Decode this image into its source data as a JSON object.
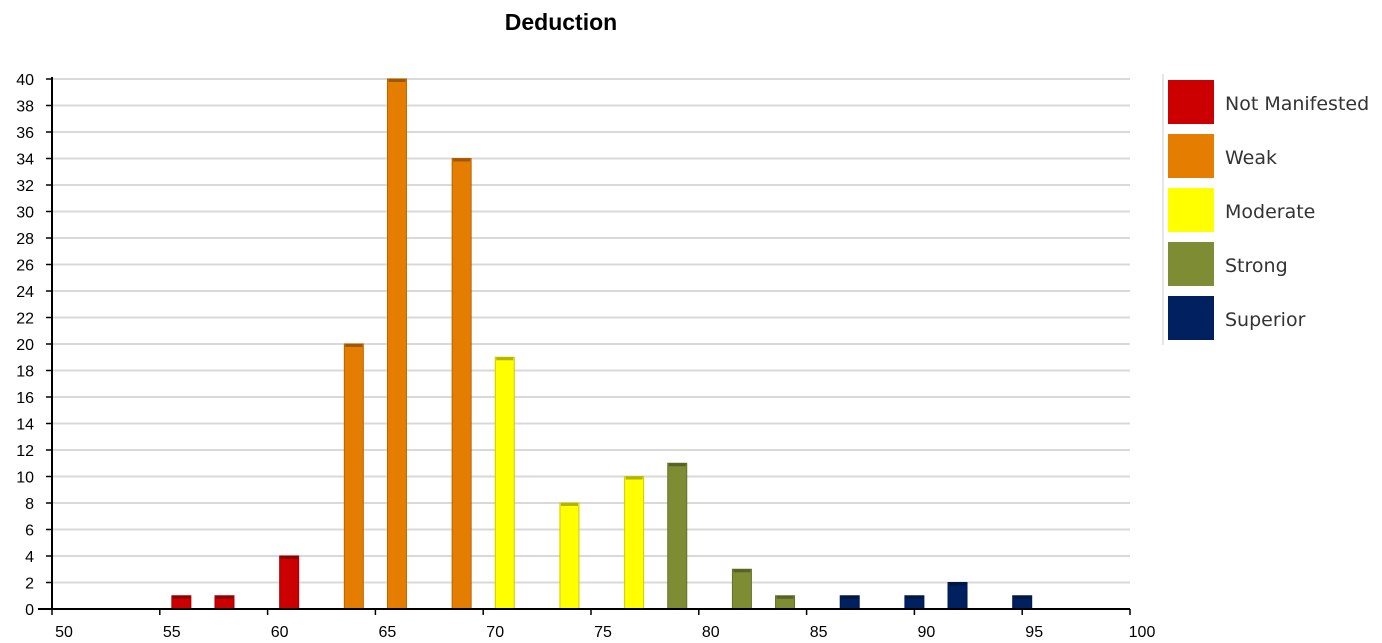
{
  "chart_data": {
    "type": "bar",
    "title": "Deduction",
    "xlabel": "",
    "ylabel": "",
    "xlim": [
      50,
      100
    ],
    "ylim": [
      0,
      40
    ],
    "x_ticks": [
      "50",
      "55",
      "60",
      "65",
      "70",
      "75",
      "80",
      "85",
      "90",
      "95",
      "100"
    ],
    "y_ticks": [
      "0",
      "2",
      "4",
      "6",
      "8",
      "10",
      "12",
      "14",
      "16",
      "18",
      "20",
      "22",
      "24",
      "26",
      "28",
      "30",
      "32",
      "34",
      "36",
      "38",
      "40"
    ],
    "grid": "horizontal",
    "legend_position": "right",
    "series": [
      {
        "name": "Not Manifested",
        "color": "#cc0000",
        "points": [
          {
            "x": 56,
            "y": 1
          },
          {
            "x": 58,
            "y": 1
          },
          {
            "x": 61,
            "y": 4
          }
        ]
      },
      {
        "name": "Weak",
        "color": "#e57e00",
        "points": [
          {
            "x": 64,
            "y": 20
          },
          {
            "x": 66,
            "y": 40
          },
          {
            "x": 69,
            "y": 34
          }
        ]
      },
      {
        "name": "Moderate",
        "color": "#ffff00",
        "points": [
          {
            "x": 71,
            "y": 19
          },
          {
            "x": 74,
            "y": 8
          },
          {
            "x": 77,
            "y": 10
          }
        ]
      },
      {
        "name": "Strong",
        "color": "#7e8c34",
        "points": [
          {
            "x": 79,
            "y": 11
          },
          {
            "x": 82,
            "y": 3
          },
          {
            "x": 84,
            "y": 1
          }
        ]
      },
      {
        "name": "Superior",
        "color": "#002060",
        "points": [
          {
            "x": 87,
            "y": 1
          },
          {
            "x": 90,
            "y": 1
          },
          {
            "x": 92,
            "y": 2
          },
          {
            "x": 95,
            "y": 1
          }
        ]
      }
    ]
  }
}
